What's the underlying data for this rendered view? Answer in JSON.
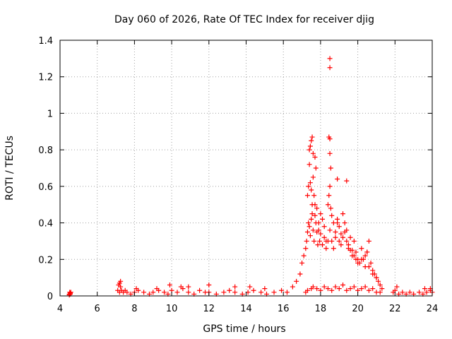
{
  "chart_data": {
    "type": "scatter",
    "title": "Day 060 of 2026, Rate Of TEC Index for receiver djig",
    "xlabel": "GPS time / hours",
    "ylabel": "ROTI / TECUs",
    "xlim": [
      4,
      24
    ],
    "ylim": [
      0,
      1.4
    ],
    "xticks": [
      4,
      6,
      8,
      10,
      12,
      14,
      16,
      18,
      20,
      22,
      24
    ],
    "yticks": [
      0,
      0.2,
      0.4,
      0.6,
      0.8,
      1,
      1.2,
      1.4
    ],
    "xtick_labels": [
      "4",
      "6",
      "8",
      "10",
      "12",
      "14",
      "16",
      "18",
      "20",
      "22",
      "24"
    ],
    "ytick_labels": [
      "0",
      "0.2",
      "0.4",
      "0.6",
      "0.8",
      "1",
      "1.2",
      "1.4"
    ],
    "grid": true,
    "marker": "+",
    "marker_color": "#ff0000",
    "series": [
      {
        "values_x": [
          4.5,
          4.52,
          4.55,
          4.58,
          4.5,
          4.55,
          7.1,
          7.15,
          7.2,
          7.25,
          7.3,
          7.4,
          7.5,
          7.6,
          7.8,
          8.0,
          8.2,
          8.5,
          8.8,
          9.0,
          9.3,
          9.6,
          9.8,
          10.0,
          10.3,
          10.6,
          10.9,
          11.2,
          11.5,
          11.8,
          12.0,
          12.4,
          12.8,
          13.1,
          13.4,
          13.8,
          14.1,
          14.4,
          14.8,
          15.1,
          15.5,
          15.9,
          16.2,
          7.2,
          7.25,
          8.1,
          9.2,
          9.9,
          10.5,
          10.9,
          12.0,
          13.4,
          14.2,
          15.0,
          16.5,
          16.7,
          16.9,
          17.0,
          17.1,
          17.2,
          17.25,
          17.3,
          17.35,
          17.4,
          17.45,
          17.5,
          17.55,
          17.6,
          17.65,
          17.7,
          17.75,
          17.8,
          17.85,
          17.9,
          17.95,
          18.0,
          18.1,
          18.2,
          18.3,
          18.4,
          18.5,
          18.6,
          18.7,
          18.8,
          18.9,
          19.0,
          19.1,
          19.2,
          19.3,
          19.4,
          19.5,
          19.6,
          19.7,
          19.8,
          19.9,
          20.0,
          20.1,
          20.2,
          20.3,
          20.4,
          20.5,
          20.6,
          20.7,
          20.8,
          20.9,
          21.0,
          21.1,
          21.2,
          21.3,
          17.3,
          17.35,
          17.4,
          17.45,
          17.5,
          17.55,
          17.6,
          17.65,
          17.7,
          17.8,
          17.9,
          18.0,
          18.1,
          18.2,
          18.3,
          18.4,
          18.45,
          18.5,
          18.55,
          18.6,
          18.7,
          18.8,
          18.9,
          19.0,
          19.1,
          19.2,
          19.3,
          19.4,
          19.5,
          19.6,
          19.7,
          19.8,
          19.9,
          20.0,
          20.2,
          20.4,
          20.5,
          20.6,
          20.8,
          21.0,
          17.4,
          17.45,
          17.5,
          17.55,
          17.6,
          17.7,
          17.75,
          18.45,
          18.5,
          18.55,
          18.5,
          18.5,
          18.5,
          18.9,
          19.4,
          17.2,
          17.3,
          17.5,
          17.6,
          17.8,
          18.0,
          18.2,
          18.4,
          18.6,
          18.8,
          19.0,
          19.2,
          19.4,
          19.6,
          19.8,
          20.0,
          20.2,
          20.4,
          20.6,
          20.8,
          21.0,
          21.2,
          21.9,
          22.0,
          22.2,
          22.4,
          22.6,
          22.8,
          23.0,
          23.3,
          23.5,
          23.7,
          23.9,
          24.0,
          22.1,
          23.6,
          23.9
        ],
        "values_y": [
          0.01,
          0.02,
          0.01,
          0.02,
          0.005,
          0.015,
          0.03,
          0.06,
          0.02,
          0.05,
          0.03,
          0.02,
          0.03,
          0.02,
          0.01,
          0.02,
          0.03,
          0.02,
          0.01,
          0.02,
          0.03,
          0.02,
          0.01,
          0.03,
          0.02,
          0.04,
          0.02,
          0.01,
          0.03,
          0.02,
          0.02,
          0.01,
          0.02,
          0.03,
          0.02,
          0.01,
          0.02,
          0.03,
          0.02,
          0.01,
          0.02,
          0.03,
          0.02,
          0.07,
          0.08,
          0.04,
          0.04,
          0.06,
          0.05,
          0.05,
          0.06,
          0.05,
          0.05,
          0.04,
          0.05,
          0.08,
          0.12,
          0.18,
          0.22,
          0.26,
          0.3,
          0.35,
          0.4,
          0.38,
          0.33,
          0.42,
          0.45,
          0.36,
          0.3,
          0.44,
          0.4,
          0.35,
          0.28,
          0.36,
          0.3,
          0.34,
          0.28,
          0.32,
          0.26,
          0.3,
          0.36,
          0.3,
          0.26,
          0.32,
          0.4,
          0.3,
          0.28,
          0.32,
          0.35,
          0.3,
          0.26,
          0.25,
          0.22,
          0.3,
          0.24,
          0.2,
          0.18,
          0.26,
          0.2,
          0.22,
          0.24,
          0.3,
          0.18,
          0.14,
          0.12,
          0.1,
          0.08,
          0.06,
          0.04,
          0.55,
          0.6,
          0.72,
          0.62,
          0.58,
          0.5,
          0.65,
          0.55,
          0.5,
          0.48,
          0.4,
          0.45,
          0.42,
          0.38,
          0.3,
          0.5,
          0.55,
          0.6,
          0.48,
          0.44,
          0.4,
          0.35,
          0.42,
          0.38,
          0.34,
          0.45,
          0.4,
          0.36,
          0.28,
          0.32,
          0.25,
          0.22,
          0.2,
          0.18,
          0.2,
          0.16,
          0.24,
          0.16,
          0.12,
          0.1,
          0.8,
          0.82,
          0.85,
          0.87,
          0.78,
          0.76,
          0.7,
          0.87,
          0.78,
          0.7,
          0.86,
          1.3,
          1.25,
          0.64,
          0.63,
          0.02,
          0.03,
          0.04,
          0.05,
          0.04,
          0.03,
          0.05,
          0.04,
          0.03,
          0.05,
          0.04,
          0.06,
          0.03,
          0.04,
          0.05,
          0.03,
          0.04,
          0.05,
          0.03,
          0.04,
          0.02,
          0.02,
          0.02,
          0.03,
          0.01,
          0.02,
          0.01,
          0.02,
          0.01,
          0.02,
          0.01,
          0.02,
          0.03,
          0.02,
          0.05,
          0.04,
          0.04
        ]
      }
    ]
  }
}
